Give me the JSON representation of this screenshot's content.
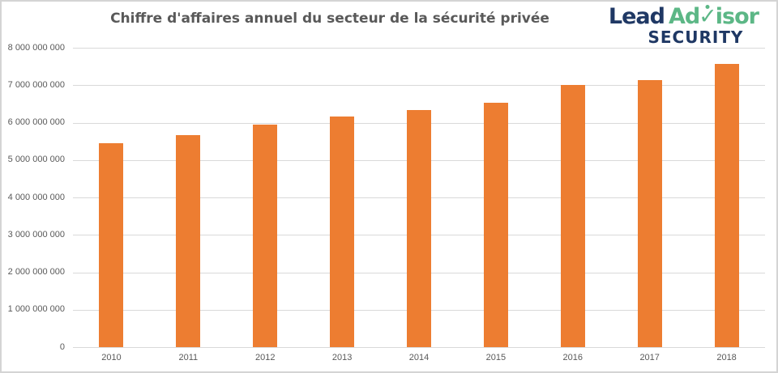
{
  "header": {
    "title": "Chiffre d'affaires annuel du secteur de la sécurité privée"
  },
  "logo": {
    "lead": "Lead",
    "advisor_prefix": "Ad",
    "check_glyph": "✓",
    "advisor_suffix": "isor",
    "security": "SECURITY",
    "navy": "#1F3864",
    "green": "#5CB786"
  },
  "chart_data": {
    "type": "bar",
    "title": "Chiffre d'affaires annuel du secteur de la sécurité privée",
    "categories": [
      "2010",
      "2011",
      "2012",
      "2013",
      "2014",
      "2015",
      "2016",
      "2017",
      "2018"
    ],
    "values": [
      5450000000,
      5660000000,
      5950000000,
      6170000000,
      6330000000,
      6520000000,
      7000000000,
      7130000000,
      7560000000
    ],
    "bar_color": "#ED7D31",
    "xlabel": "",
    "ylabel": "",
    "ylim": [
      0,
      8000000000
    ],
    "y_ticks": [
      0,
      1000000000,
      2000000000,
      3000000000,
      4000000000,
      5000000000,
      6000000000,
      7000000000,
      8000000000
    ],
    "y_tick_labels": [
      "0",
      "1 000 000 000",
      "2 000 000 000",
      "3 000 000 000",
      "4 000 000 000",
      "5 000 000 000",
      "6 000 000 000",
      "7 000 000 000",
      "8 000 000 000"
    ],
    "grid": true,
    "legend": "none"
  },
  "colors": {
    "title_text": "#595959",
    "axis_text": "#595959",
    "gridline": "#D9D9D9",
    "background": "#FFFFFF",
    "border": "#D4D4D4"
  }
}
